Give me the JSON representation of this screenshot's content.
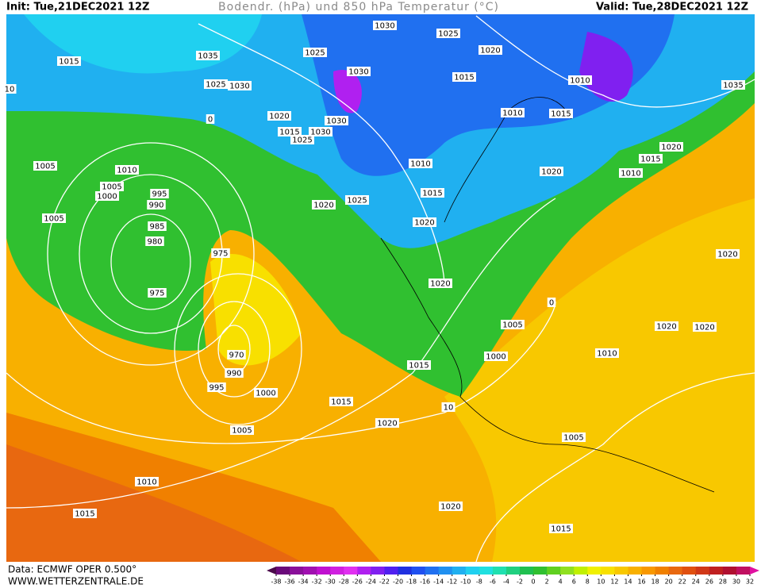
{
  "header": {
    "init": "Init: Tue,21DEC2021 12Z",
    "title": "Bodendr. (hPa) und 850 hPa Temperatur (°C)",
    "valid": "Valid: Tue,28DEC2021 12Z"
  },
  "footer": {
    "data": "Data: ECMWF OPER 0.500°",
    "site": "WWW.WETTERZENTRALE.DE"
  },
  "scale": {
    "ticks": [
      -38,
      -36,
      -34,
      -32,
      -30,
      -28,
      -26,
      -24,
      -22,
      -20,
      -18,
      -16,
      -14,
      -12,
      -10,
      -8,
      -6,
      -4,
      -2,
      0,
      2,
      4,
      6,
      8,
      10,
      12,
      14,
      16,
      18,
      20,
      22,
      24,
      26,
      28,
      30,
      32
    ],
    "colors": [
      "#4b0a4b",
      "#6a0a7a",
      "#8a109a",
      "#a010b0",
      "#c010d0",
      "#d020e0",
      "#e030f0",
      "#b020f0",
      "#8020f0",
      "#5020f0",
      "#2030e0",
      "#2050f0",
      "#2070f0",
      "#2090f0",
      "#20b0f0",
      "#20d0f0",
      "#20e0e0",
      "#20e0b0",
      "#20d080",
      "#20c050",
      "#30c030",
      "#60d020",
      "#90e020",
      "#c0f000",
      "#f0f000",
      "#f8e000",
      "#f8c800",
      "#f8b000",
      "#f89800",
      "#f08000",
      "#e86810",
      "#e05010",
      "#d03818",
      "#c02020",
      "#b01030",
      "#c01060",
      "#e010a0"
    ]
  },
  "isobar_labels": [
    1030,
    1025,
    1020,
    1015,
    1035,
    1025,
    1030,
    1015,
    1010,
    1035,
    10,
    1025,
    1030,
    1020,
    1010,
    1015,
    1015,
    1030,
    1030,
    1025,
    1020,
    1015,
    1005,
    1010,
    1010,
    1020,
    1010,
    1005,
    995,
    1000,
    1015,
    990,
    1025,
    1020,
    1005,
    985,
    1020,
    980,
    975,
    1020,
    975,
    1020,
    0,
    1005,
    1020,
    1020,
    1010,
    1000,
    970,
    990,
    1015,
    995,
    1000,
    1015,
    10,
    1020,
    1005,
    1005,
    1010,
    1020,
    1015,
    1015,
    0
  ]
}
